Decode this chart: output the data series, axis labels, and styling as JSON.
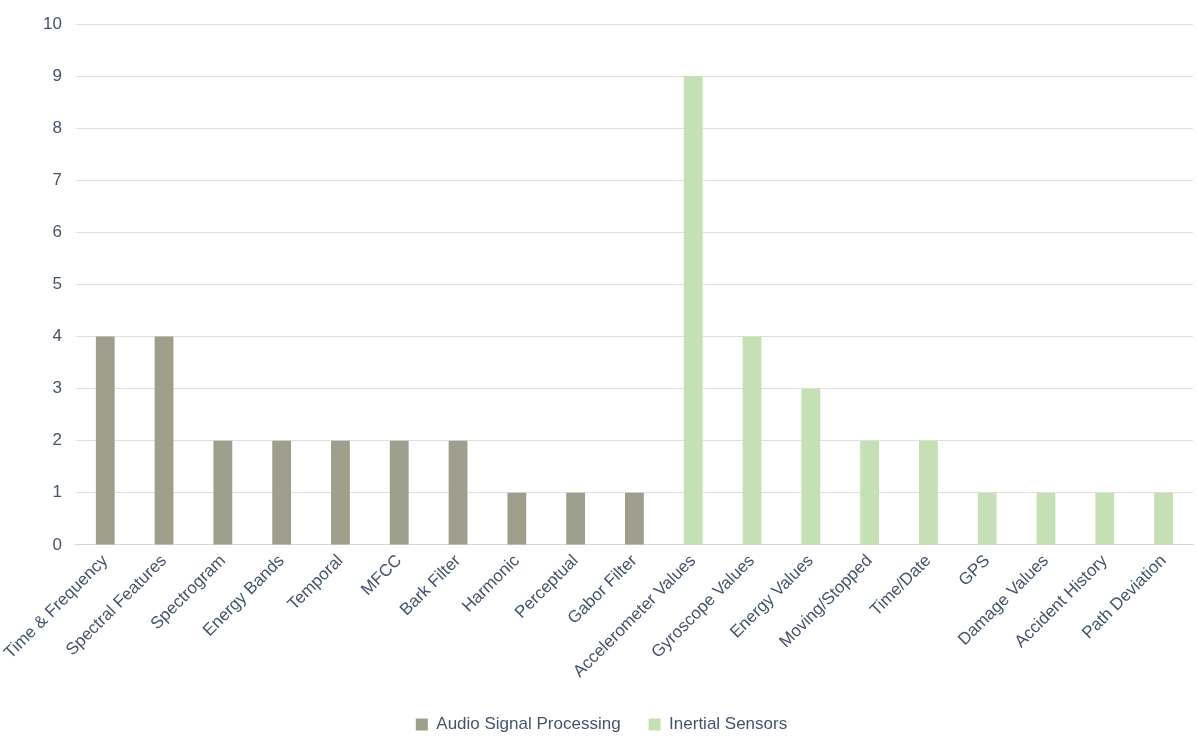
{
  "chart_data": {
    "type": "bar",
    "categories": [
      "Time & Frequency",
      "Spectral Features",
      "Spectrogram",
      "Energy Bands",
      "Temporal",
      "MFCC",
      "Bark Filter",
      "Harmonic",
      "Perceptual",
      "Gabor Filter",
      "Accelerometer Values",
      "Gyroscope Values",
      "Energy Values",
      "Moving/Stopped",
      "Time/Date",
      "GPS",
      "Damage Values",
      "Accident History",
      "Path Deviation"
    ],
    "series": [
      {
        "name": "Audio Signal Processing",
        "color": "#9e9e8c",
        "values": [
          4,
          4,
          2,
          2,
          2,
          2,
          2,
          1,
          1,
          1,
          null,
          null,
          null,
          null,
          null,
          null,
          null,
          null,
          null
        ]
      },
      {
        "name": "Inertial Sensors",
        "color": "#c5e0b4",
        "values": [
          null,
          null,
          null,
          null,
          null,
          null,
          null,
          null,
          null,
          null,
          9,
          4,
          3,
          2,
          2,
          1,
          1,
          1,
          1
        ]
      }
    ],
    "ylim": [
      0,
      10
    ],
    "yticks": [
      0,
      1,
      2,
      3,
      4,
      5,
      6,
      7,
      8,
      9,
      10
    ],
    "grid": "y",
    "legend": "bottom"
  }
}
